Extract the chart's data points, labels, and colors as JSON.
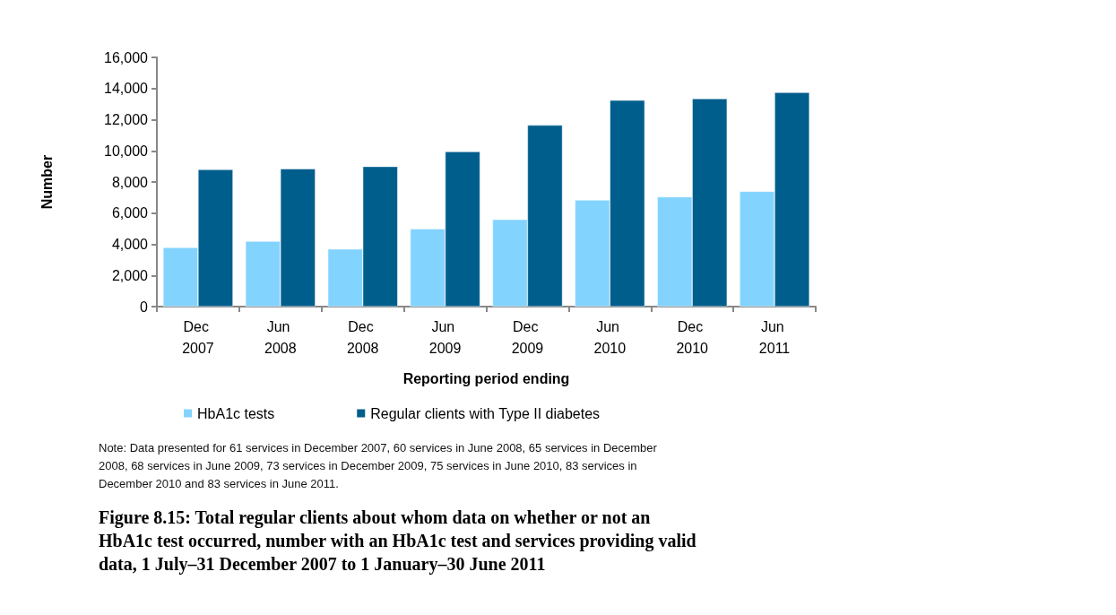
{
  "chart_data": {
    "type": "bar",
    "title": "Figure 8.15: Total regular clients about whom data on whether or not an HbA1c test occurred, number with an HbA1c test and services providing valid data, 1 July–31 December 2007 to 1 January–30 June 2011",
    "xlabel": "Reporting period ending",
    "ylabel": "Number",
    "annotations": [
      "Note: Data presented for 61 services in December 2007, 60 services in June 2008, 65 services in December 2008, 68 services in June 2009, 73 services in December 2009, 75 services in June 2010, 83 services in December 2010 and 83 services in June 2011."
    ],
    "categories": [
      "Dec 2007",
      "Jun 2008",
      "Dec 2008",
      "Jun 2009",
      "Dec 2009",
      "Jun 2010",
      "Dec 2010",
      "Jun 2011"
    ],
    "series": [
      {
        "name": "HbA1c tests",
        "color": "#83d3ff",
        "values": [
          3800,
          4200,
          3700,
          5000,
          5600,
          6850,
          7050,
          7400
        ]
      },
      {
        "name": "Regular clients with Type II diabetes",
        "color": "#005e8c",
        "values": [
          8800,
          8850,
          9000,
          9950,
          11650,
          13250,
          13350,
          13750
        ]
      }
    ],
    "ylim": [
      0,
      16000
    ],
    "yticks": [
      0,
      {
        "value": 2000,
        "label": "2,000"
      },
      {
        "value": 4000,
        "label": "4,000"
      },
      {
        "value": 6000,
        "label": "6,000"
      },
      {
        "value": 8000,
        "label": "8,000"
      },
      {
        "value": 10000,
        "label": "10,000"
      },
      {
        "value": 12000,
        "label": "12,000"
      },
      {
        "value": 14000,
        "label": "14,000"
      },
      {
        "value": 16000,
        "label": "16,000"
      }
    ],
    "grid": false,
    "legend": "bottom"
  }
}
